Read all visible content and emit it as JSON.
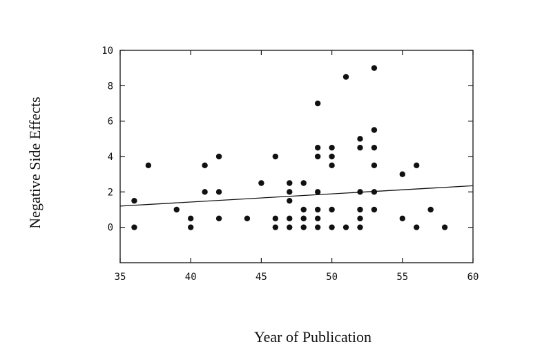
{
  "chart_data": {
    "type": "scatter",
    "xlabel": "Year of Publication",
    "ylabel": "Negative Side Effects",
    "xlim": [
      35,
      60
    ],
    "ylim": [
      -2,
      10
    ],
    "xticks": [
      35,
      40,
      45,
      50,
      55,
      60
    ],
    "yticks": [
      0,
      2,
      4,
      6,
      8,
      10
    ],
    "grid": false,
    "points": [
      {
        "x": 36,
        "y": 1.5
      },
      {
        "x": 36,
        "y": 0
      },
      {
        "x": 37,
        "y": 3.5
      },
      {
        "x": 39,
        "y": 1
      },
      {
        "x": 40,
        "y": 0.5
      },
      {
        "x": 40,
        "y": 0
      },
      {
        "x": 41,
        "y": 3.5
      },
      {
        "x": 41,
        "y": 2
      },
      {
        "x": 42,
        "y": 4
      },
      {
        "x": 42,
        "y": 2
      },
      {
        "x": 42,
        "y": 0.5
      },
      {
        "x": 44,
        "y": 0.5
      },
      {
        "x": 45,
        "y": 2.5
      },
      {
        "x": 46,
        "y": 4
      },
      {
        "x": 46,
        "y": 0.5
      },
      {
        "x": 46,
        "y": 0
      },
      {
        "x": 47,
        "y": 2.5
      },
      {
        "x": 47,
        "y": 2
      },
      {
        "x": 47,
        "y": 1.5
      },
      {
        "x": 47,
        "y": 0.5
      },
      {
        "x": 47,
        "y": 0
      },
      {
        "x": 48,
        "y": 2.5
      },
      {
        "x": 48,
        "y": 1
      },
      {
        "x": 48,
        "y": 0.5
      },
      {
        "x": 48,
        "y": 0
      },
      {
        "x": 49,
        "y": 7
      },
      {
        "x": 49,
        "y": 4.5
      },
      {
        "x": 49,
        "y": 4
      },
      {
        "x": 49,
        "y": 2
      },
      {
        "x": 49,
        "y": 1
      },
      {
        "x": 49,
        "y": 0.5
      },
      {
        "x": 49,
        "y": 0
      },
      {
        "x": 50,
        "y": 4.5
      },
      {
        "x": 50,
        "y": 4
      },
      {
        "x": 50,
        "y": 3.5
      },
      {
        "x": 50,
        "y": 1
      },
      {
        "x": 50,
        "y": 0
      },
      {
        "x": 51,
        "y": 8.5
      },
      {
        "x": 51,
        "y": 0
      },
      {
        "x": 52,
        "y": 5
      },
      {
        "x": 52,
        "y": 4.5
      },
      {
        "x": 52,
        "y": 2
      },
      {
        "x": 52,
        "y": 1
      },
      {
        "x": 52,
        "y": 0.5
      },
      {
        "x": 52,
        "y": 0
      },
      {
        "x": 53,
        "y": 9
      },
      {
        "x": 53,
        "y": 5.5
      },
      {
        "x": 53,
        "y": 4.5
      },
      {
        "x": 53,
        "y": 3.5
      },
      {
        "x": 53,
        "y": 2
      },
      {
        "x": 53,
        "y": 1
      },
      {
        "x": 55,
        "y": 3
      },
      {
        "x": 55,
        "y": 0.5
      },
      {
        "x": 56,
        "y": 3.5
      },
      {
        "x": 56,
        "y": 0
      },
      {
        "x": 57,
        "y": 1
      },
      {
        "x": 58,
        "y": 0
      }
    ],
    "trendline": {
      "x": [
        35,
        60
      ],
      "y": [
        1.2,
        2.35
      ]
    }
  }
}
